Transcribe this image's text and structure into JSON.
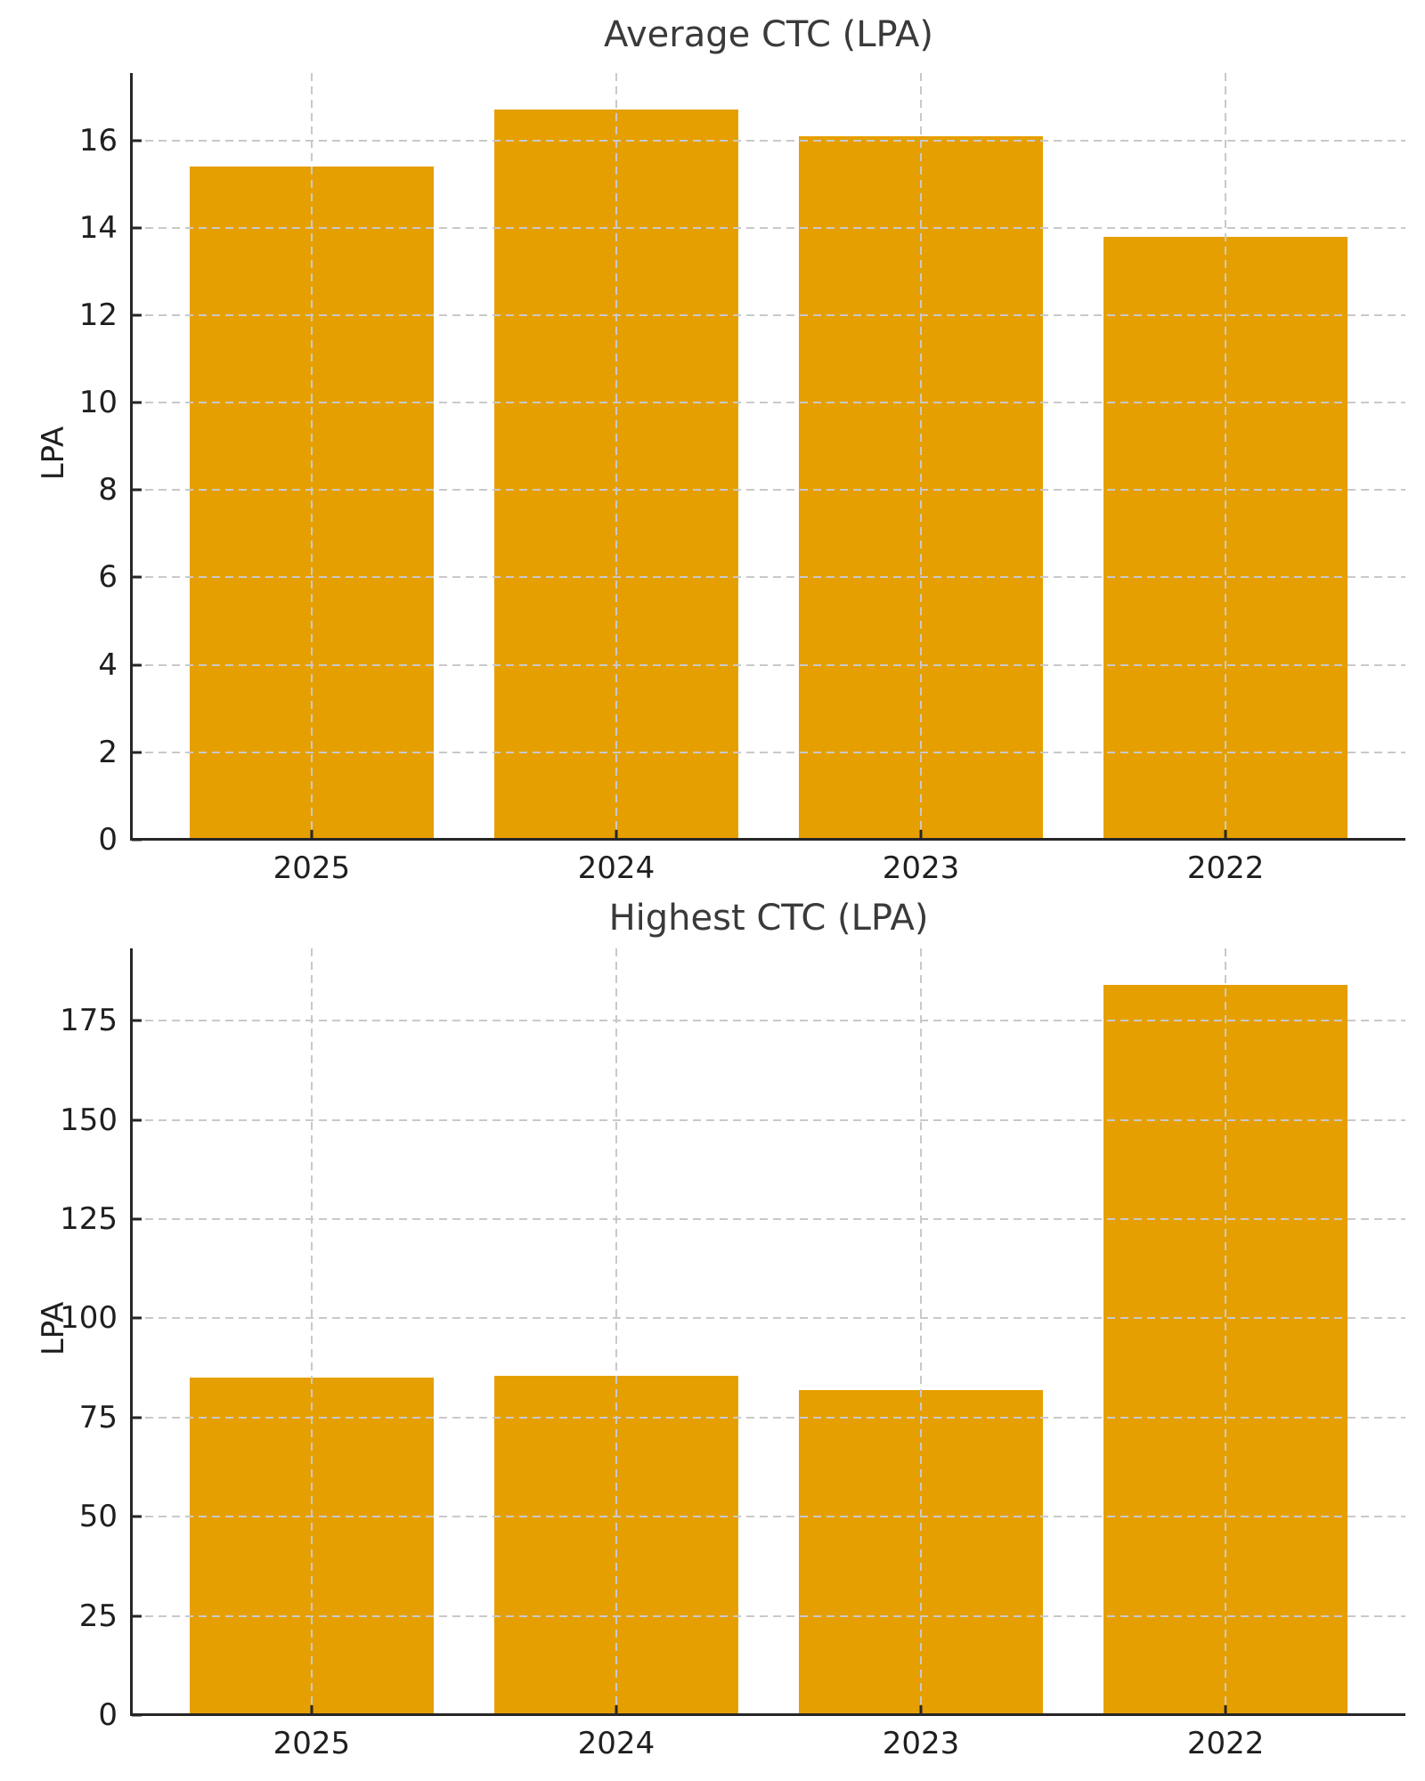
{
  "figure": {
    "background": "#ffffff"
  },
  "colors": {
    "bar": "#E69F00",
    "grid": "#C9C9C9",
    "axis": "#262626",
    "tick_text": "#1F1F1F",
    "title_text": "#3A3A3A"
  },
  "chart_data": [
    {
      "type": "bar",
      "title": "Average CTC (LPA)",
      "ylabel": "LPA",
      "xlabel": "",
      "categories": [
        "2025",
        "2024",
        "2023",
        "2022"
      ],
      "values": [
        15.4,
        16.7,
        16.1,
        13.8
      ],
      "yticks": [
        0,
        2,
        4,
        6,
        8,
        10,
        12,
        14,
        16
      ],
      "ylim": [
        0,
        17.54
      ],
      "bar_color": "#E69F00",
      "bar_width_fraction": 0.8,
      "grid": {
        "style": "dashed",
        "horizontal": true,
        "vertical": true
      },
      "legend": null
    },
    {
      "type": "bar",
      "title": "Highest CTC (LPA)",
      "ylabel": "LPA",
      "xlabel": "",
      "categories": [
        "2025",
        "2024",
        "2023",
        "2022"
      ],
      "values": [
        85,
        85.5,
        82,
        184
      ],
      "yticks": [
        0,
        25,
        50,
        75,
        100,
        125,
        150,
        175
      ],
      "ylim": [
        0,
        193.2
      ],
      "bar_color": "#E69F00",
      "bar_width_fraction": 0.8,
      "grid": {
        "style": "dashed",
        "horizontal": true,
        "vertical": true
      },
      "legend": null
    }
  ]
}
